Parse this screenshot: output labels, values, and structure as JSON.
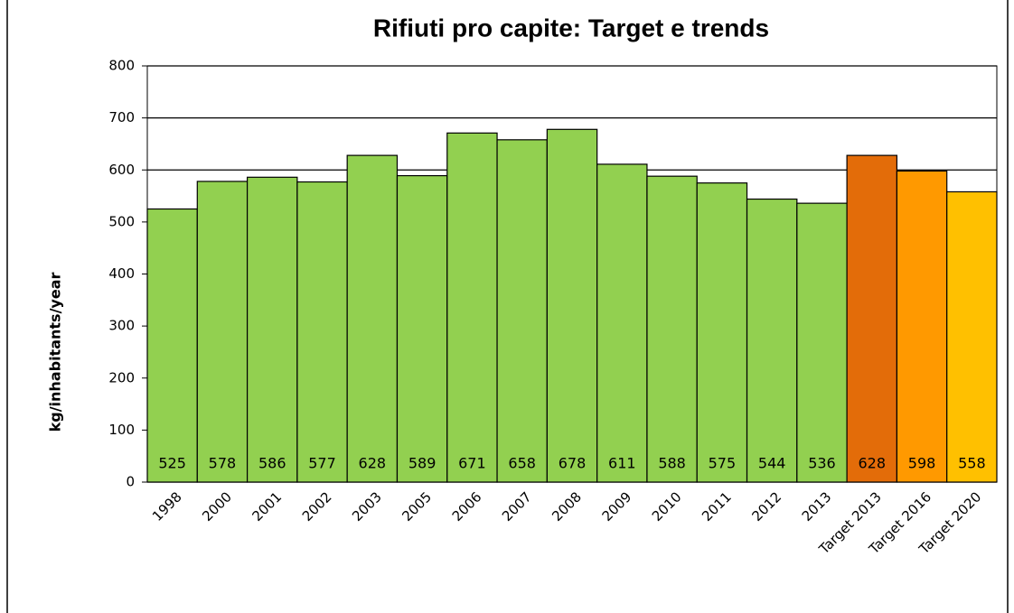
{
  "chart_data": {
    "type": "bar",
    "title": "Rifiuti pro capite: Target e trends",
    "y_label": "kg/inhabitants/year",
    "categories": [
      "1998",
      "2000",
      "2001",
      "2002",
      "2003",
      "2005",
      "2006",
      "2007",
      "2008",
      "2009",
      "2010",
      "2011",
      "2012",
      "2013",
      "Target 2013",
      "Target 2016",
      "Target 2020"
    ],
    "values": [
      525,
      578,
      586,
      577,
      628,
      589,
      671,
      658,
      678,
      611,
      588,
      575,
      544,
      536,
      628,
      598,
      558
    ],
    "colors": [
      "#92d050",
      "#92d050",
      "#92d050",
      "#92d050",
      "#92d050",
      "#92d050",
      "#92d050",
      "#92d050",
      "#92d050",
      "#92d050",
      "#92d050",
      "#92d050",
      "#92d050",
      "#92d050",
      "#e36c09",
      "#ff9900",
      "#ffc000"
    ],
    "ylim": [
      0,
      800
    ],
    "yticks": [
      0,
      100,
      200,
      300,
      400,
      500,
      600,
      700,
      800
    ],
    "grid": true
  }
}
